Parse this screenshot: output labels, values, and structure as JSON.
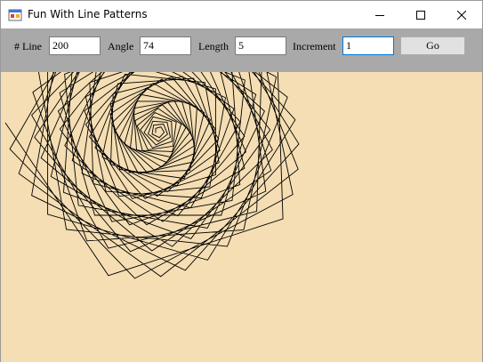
{
  "window": {
    "title": "Fun With Line Patterns",
    "app_icon": "winforms-app-icon"
  },
  "toolbar": {
    "lines_label": "# Line",
    "lines_value": "200",
    "angle_label": "Angle",
    "angle_value": "74",
    "length_label": "Length",
    "length_value": "5",
    "increment_label": "Increment",
    "increment_value": "1",
    "go_label": "Go"
  },
  "drawing": {
    "background_color": "#f5deb3",
    "line_color": "#000000"
  }
}
